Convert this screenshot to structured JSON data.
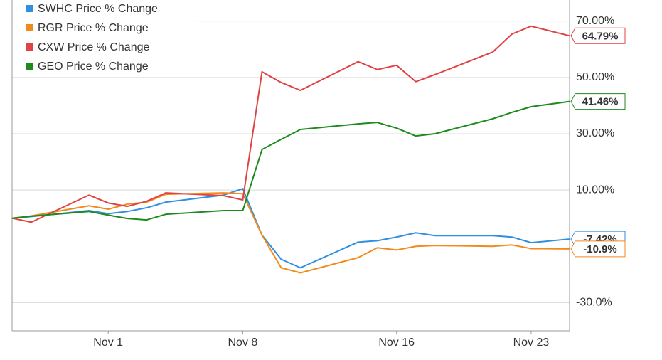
{
  "chart_data": {
    "type": "line",
    "x": [
      -4,
      -3,
      0,
      1,
      2,
      3,
      4,
      7,
      8,
      9,
      10,
      11,
      14,
      15,
      16,
      17,
      18,
      21,
      22,
      23,
      25
    ],
    "xlim": [
      -4,
      25
    ],
    "xticks": [
      {
        "value": 1,
        "label": "Nov 1"
      },
      {
        "value": 8,
        "label": "Nov 8"
      },
      {
        "value": 16,
        "label": "Nov 16"
      },
      {
        "value": 23,
        "label": "Nov 23"
      }
    ],
    "ylim": [
      -40,
      77.5
    ],
    "yticks": [
      {
        "value": 70,
        "label": "70.00%"
      },
      {
        "value": 50,
        "label": "50.00%"
      },
      {
        "value": 30,
        "label": "30.00%"
      },
      {
        "value": 10,
        "label": "10.00%"
      },
      {
        "value": -30,
        "label": "-30.0%"
      }
    ],
    "grid": true,
    "legend": "top-left",
    "series": [
      {
        "name": "SWHC Price % Change",
        "color": "#2f8fe0",
        "values": [
          0,
          0.6,
          2.7,
          1.6,
          2.4,
          3.7,
          5.7,
          8.2,
          10.5,
          -6,
          -14.6,
          -17.6,
          -8.5,
          -8,
          -6.7,
          -5.2,
          -6.2,
          -6.2,
          -6.7,
          -8.7,
          -7.42
        ],
        "value_labels": [
          null,
          null,
          null,
          null,
          null,
          null,
          null,
          null,
          null,
          null,
          null,
          null,
          null,
          null,
          null,
          null,
          null,
          null,
          null,
          null,
          "-7.42%"
        ]
      },
      {
        "name": "RGR Price % Change",
        "color": "#f28a1b",
        "values": [
          0,
          0.8,
          4.4,
          3.2,
          5,
          5.7,
          8.5,
          9,
          8.7,
          -6,
          -17.6,
          -19.4,
          -14,
          -10.5,
          -11.3,
          -10,
          -9.7,
          -10,
          -9.5,
          -10.8,
          -10.9
        ],
        "value_labels": [
          null,
          null,
          null,
          null,
          null,
          null,
          null,
          null,
          null,
          null,
          null,
          null,
          null,
          null,
          null,
          null,
          null,
          null,
          null,
          null,
          "-10.9%"
        ]
      },
      {
        "name": "CXW Price % Change",
        "color": "#e04343",
        "values": [
          0,
          -1.4,
          8.2,
          5.4,
          4.2,
          6,
          9,
          8,
          6.5,
          52,
          48.2,
          45.4,
          55.6,
          52.8,
          54.3,
          48.5,
          51,
          59,
          65.4,
          68.2,
          64.79
        ],
        "value_labels": [
          null,
          null,
          null,
          null,
          null,
          null,
          null,
          null,
          null,
          null,
          null,
          null,
          null,
          null,
          null,
          null,
          null,
          null,
          null,
          null,
          "64.79%"
        ]
      },
      {
        "name": "GEO Price % Change",
        "color": "#1f8a1f",
        "values": [
          0,
          0.7,
          2.4,
          1.1,
          -0.1,
          -0.6,
          1.4,
          2.7,
          2.7,
          24.4,
          28,
          31.5,
          33.5,
          34,
          32,
          29.2,
          30,
          35.3,
          37.6,
          39.6,
          41.46
        ],
        "value_labels": [
          null,
          null,
          null,
          null,
          null,
          null,
          null,
          null,
          null,
          null,
          null,
          null,
          null,
          null,
          null,
          null,
          null,
          null,
          null,
          null,
          "41.46%"
        ]
      }
    ]
  }
}
